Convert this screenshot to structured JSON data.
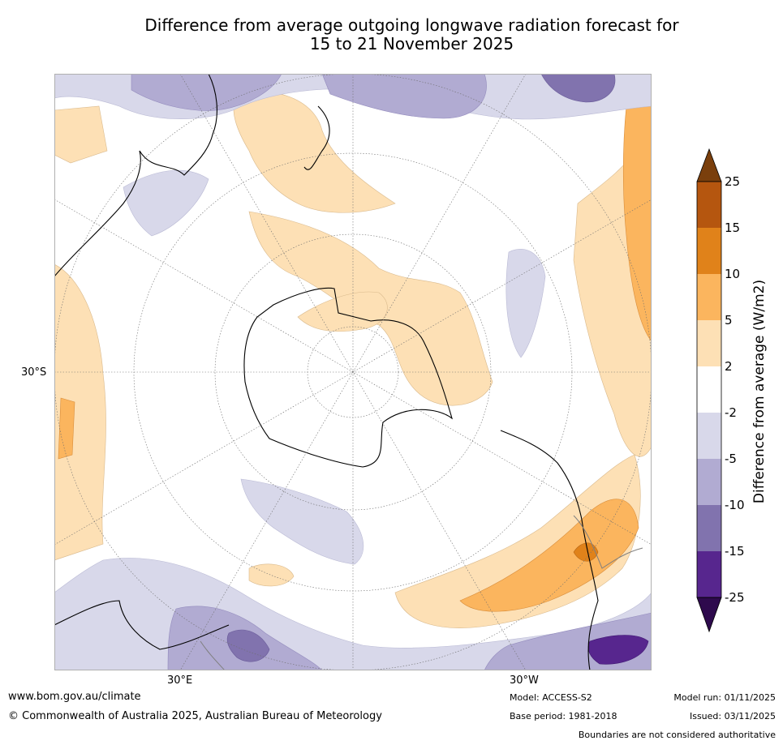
{
  "title": {
    "line1": "Difference from average outgoing longwave radiation forecast for",
    "line2": "15 to 21 November 2025"
  },
  "map": {
    "lat_label": "30°S",
    "lon_labels": [
      "30°E",
      "30°W"
    ]
  },
  "colorbar": {
    "title": "Difference from average (W/m2)",
    "ticks": [
      "25",
      "15",
      "10",
      "5",
      "2",
      "-2",
      "-5",
      "-10",
      "-15",
      "-25"
    ],
    "colors": {
      "above_25": "#7a3f0c",
      "15_25": "#b5560f",
      "10_15": "#e0821a",
      "5_10": "#fbb55e",
      "2_5": "#fde0b5",
      "neutral": "#ffffff",
      "m2_m5": "#d8d8ea",
      "m5_m10": "#b1abd2",
      "m10_m15": "#8173ae",
      "m15_m25": "#57268e",
      "below_m25": "#2e0a4d"
    }
  },
  "footer": {
    "website": "www.bom.gov.au/climate",
    "copyright": "© Commonwealth of Australia 2025, Australian Bureau of Meteorology",
    "model": "Model: ACCESS-S2",
    "base_period": "Base period: 1981-2018",
    "model_run": "Model run: 01/11/2025",
    "issued": "Issued: 03/11/2025",
    "disclaimer": "Boundaries are not considered authoritative"
  }
}
